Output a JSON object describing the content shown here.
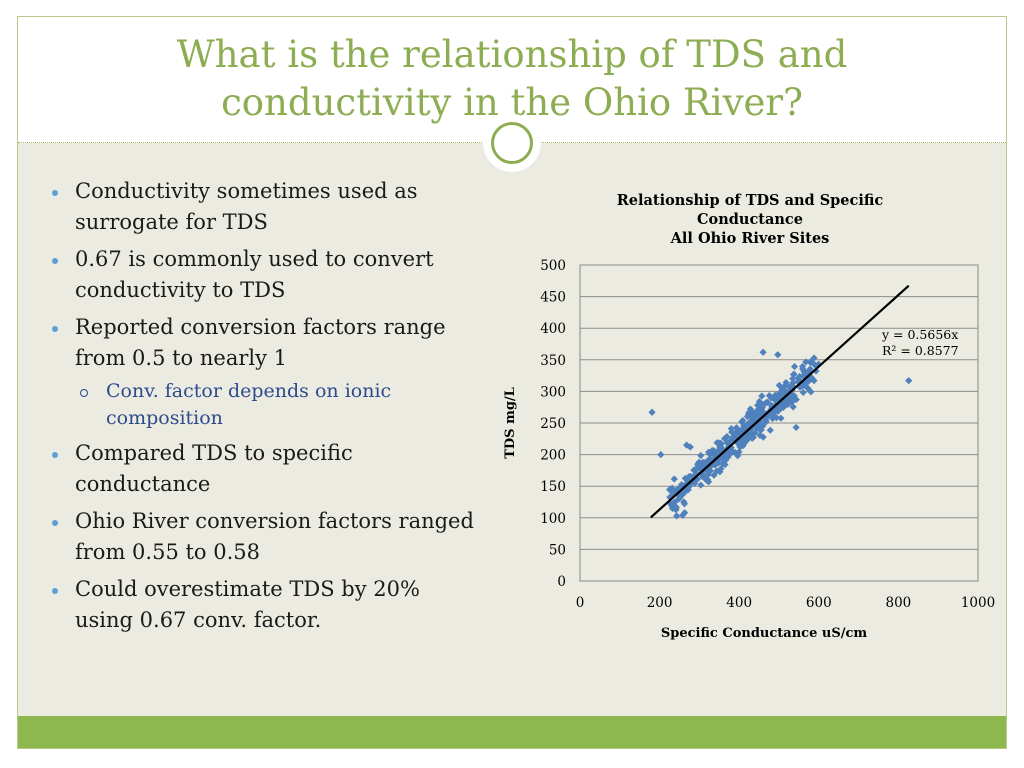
{
  "slide": {
    "title_line1": "What is the relationship of TDS and",
    "title_line2": "conductivity in the Ohio River?",
    "colors": {
      "accent": "#8dad52",
      "footer": "#8db850",
      "content_bg": "#ecebe1",
      "bullet": "#5e9fd4",
      "subtext": "#2c4a8c"
    }
  },
  "bullets": [
    {
      "text": "Conductivity sometimes used as surrogate for TDS",
      "level": 1
    },
    {
      "text": "0.67 is commonly used to convert conductivity to TDS",
      "level": 1
    },
    {
      "text": "Reported conversion factors range from 0.5 to nearly 1",
      "level": 1
    },
    {
      "text": "Conv. factor depends on ionic composition",
      "level": 2
    },
    {
      "text": "Compared TDS to specific conductance",
      "level": 1
    },
    {
      "text": "Ohio River conversion factors ranged from 0.55 to 0.58",
      "level": 1
    },
    {
      "text": "Could overestimate TDS by 20% using 0.67 conv. factor.",
      "level": 1
    }
  ],
  "chart_data": {
    "type": "scatter",
    "title_lines": [
      "Relationship of TDS and Specific",
      "Conductance",
      "All Ohio River Sites"
    ],
    "xlabel": "Specific Conductance uS/cm",
    "ylabel": "TDS mg/L",
    "xlim": [
      0,
      1000
    ],
    "ylim": [
      0,
      500
    ],
    "xticks": [
      "0",
      "200",
      "400",
      "600",
      "800",
      "1000"
    ],
    "yticks": [
      "0",
      "50",
      "100",
      "150",
      "200",
      "250",
      "300",
      "350",
      "400",
      "450",
      "500"
    ],
    "grid": "horizontal",
    "marker_color": "#4f81bd",
    "trendline": {
      "slope": 0.5656,
      "x_range": [
        178,
        826
      ],
      "color": "#000000"
    },
    "annotations": [
      "y = 0.5656x",
      "R² = 0.8577"
    ],
    "outliers": [
      {
        "x": 181,
        "y": 267
      },
      {
        "x": 203,
        "y": 200
      },
      {
        "x": 826,
        "y": 317
      },
      {
        "x": 460,
        "y": 362
      },
      {
        "x": 497,
        "y": 358
      },
      {
        "x": 243,
        "y": 103
      },
      {
        "x": 258,
        "y": 104
      },
      {
        "x": 263,
        "y": 108
      },
      {
        "x": 268,
        "y": 215
      },
      {
        "x": 277,
        "y": 212
      },
      {
        "x": 543,
        "y": 243
      },
      {
        "x": 588,
        "y": 317
      }
    ],
    "cluster": {
      "count": 420,
      "x_range": [
        225,
        600
      ],
      "y_per_x": 0.5656,
      "spread": 22
    }
  }
}
